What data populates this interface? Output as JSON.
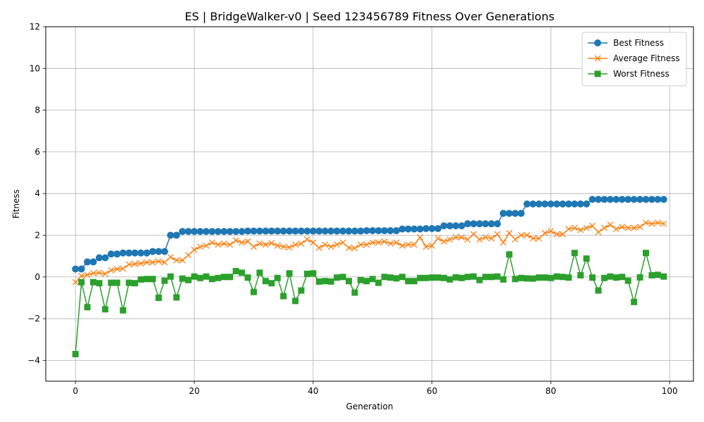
{
  "chart_data": {
    "type": "line",
    "title": "ES | BridgeWalker-v0 | Seed 123456789 Fitness Over Generations",
    "xlabel": "Generation",
    "ylabel": "Fitness",
    "xlim": [
      -5,
      104
    ],
    "ylim": [
      -5,
      12
    ],
    "xticks": [
      0,
      20,
      40,
      60,
      80,
      100
    ],
    "yticks": [
      -4,
      -2,
      0,
      2,
      4,
      6,
      8,
      10,
      12
    ],
    "xtick_labels": [
      "0",
      "20",
      "40",
      "60",
      "80",
      "100"
    ],
    "ytick_labels": [
      "−4",
      "−2",
      "0",
      "2",
      "4",
      "6",
      "8",
      "10",
      "12"
    ],
    "grid": true,
    "legend_position": "top-right",
    "series": [
      {
        "name": "Best Fitness",
        "color": "#1f77b4",
        "marker": "circle",
        "values": [
          0.38,
          0.38,
          0.72,
          0.72,
          0.92,
          0.92,
          1.1,
          1.1,
          1.15,
          1.15,
          1.15,
          1.15,
          1.15,
          1.22,
          1.22,
          1.22,
          2.0,
          2.0,
          2.18,
          2.18,
          2.18,
          2.18,
          2.18,
          2.18,
          2.18,
          2.18,
          2.18,
          2.18,
          2.18,
          2.2,
          2.2,
          2.2,
          2.2,
          2.2,
          2.2,
          2.2,
          2.2,
          2.2,
          2.2,
          2.2,
          2.2,
          2.2,
          2.2,
          2.2,
          2.2,
          2.2,
          2.2,
          2.2,
          2.2,
          2.22,
          2.22,
          2.22,
          2.22,
          2.22,
          2.22,
          2.3,
          2.3,
          2.3,
          2.3,
          2.32,
          2.32,
          2.32,
          2.45,
          2.45,
          2.45,
          2.45,
          2.55,
          2.55,
          2.55,
          2.55,
          2.55,
          2.55,
          3.05,
          3.05,
          3.05,
          3.05,
          3.5,
          3.5,
          3.5,
          3.5,
          3.5,
          3.5,
          3.5,
          3.5,
          3.5,
          3.5,
          3.5,
          3.72,
          3.72,
          3.72,
          3.72,
          3.72,
          3.72,
          3.72,
          3.72,
          3.72,
          3.72,
          3.72,
          3.72,
          3.72
        ]
      },
      {
        "name": "Average Fitness",
        "color": "#ff7f0e",
        "marker": "x",
        "values": [
          -0.25,
          0.05,
          0.1,
          0.18,
          0.2,
          0.15,
          0.32,
          0.38,
          0.4,
          0.6,
          0.62,
          0.65,
          0.7,
          0.7,
          0.75,
          0.7,
          0.95,
          0.8,
          0.8,
          1.05,
          1.3,
          1.45,
          1.5,
          1.65,
          1.55,
          1.6,
          1.55,
          1.75,
          1.65,
          1.7,
          1.45,
          1.6,
          1.55,
          1.62,
          1.5,
          1.45,
          1.42,
          1.55,
          1.6,
          1.8,
          1.65,
          1.4,
          1.55,
          1.45,
          1.55,
          1.65,
          1.4,
          1.38,
          1.55,
          1.55,
          1.65,
          1.65,
          1.7,
          1.6,
          1.65,
          1.5,
          1.55,
          1.55,
          1.9,
          1.45,
          1.5,
          1.85,
          1.7,
          1.8,
          1.9,
          1.9,
          1.8,
          2.05,
          1.8,
          1.9,
          1.85,
          2.05,
          1.65,
          2.1,
          1.8,
          2.0,
          2.0,
          1.85,
          1.85,
          2.1,
          2.2,
          2.05,
          2.05,
          2.3,
          2.35,
          2.25,
          2.35,
          2.45,
          2.15,
          2.35,
          2.5,
          2.3,
          2.4,
          2.35,
          2.35,
          2.4,
          2.6,
          2.55,
          2.6,
          2.55
        ]
      },
      {
        "name": "Worst Fitness",
        "color": "#2ca02c",
        "marker": "square",
        "values": [
          -3.7,
          -0.25,
          -1.45,
          -0.25,
          -0.3,
          -1.55,
          -0.28,
          -0.28,
          -1.6,
          -0.28,
          -0.3,
          -0.12,
          -0.1,
          -0.1,
          -1.0,
          -0.18,
          0.02,
          -0.98,
          -0.08,
          -0.15,
          0.02,
          -0.05,
          0.02,
          -0.1,
          -0.05,
          0.0,
          0.0,
          0.28,
          0.2,
          -0.03,
          -0.72,
          0.2,
          -0.2,
          -0.3,
          -0.05,
          -0.92,
          0.17,
          -1.15,
          -0.65,
          0.15,
          0.17,
          -0.22,
          -0.2,
          -0.22,
          -0.03,
          0.0,
          -0.2,
          -0.75,
          -0.15,
          -0.2,
          -0.1,
          -0.28,
          0.0,
          -0.03,
          -0.07,
          0.0,
          -0.2,
          -0.2,
          -0.05,
          -0.05,
          -0.03,
          -0.03,
          -0.05,
          -0.12,
          -0.02,
          -0.05,
          0.0,
          0.02,
          -0.15,
          0.0,
          0.0,
          0.02,
          -0.12,
          1.08,
          -0.1,
          -0.05,
          -0.07,
          -0.08,
          -0.03,
          -0.03,
          -0.05,
          0.02,
          0.0,
          -0.03,
          1.15,
          0.08,
          0.88,
          -0.03,
          -0.65,
          -0.05,
          0.02,
          -0.03,
          0.0,
          -0.18,
          -1.2,
          -0.02,
          1.15,
          0.08,
          0.1,
          0.02
        ]
      }
    ]
  }
}
